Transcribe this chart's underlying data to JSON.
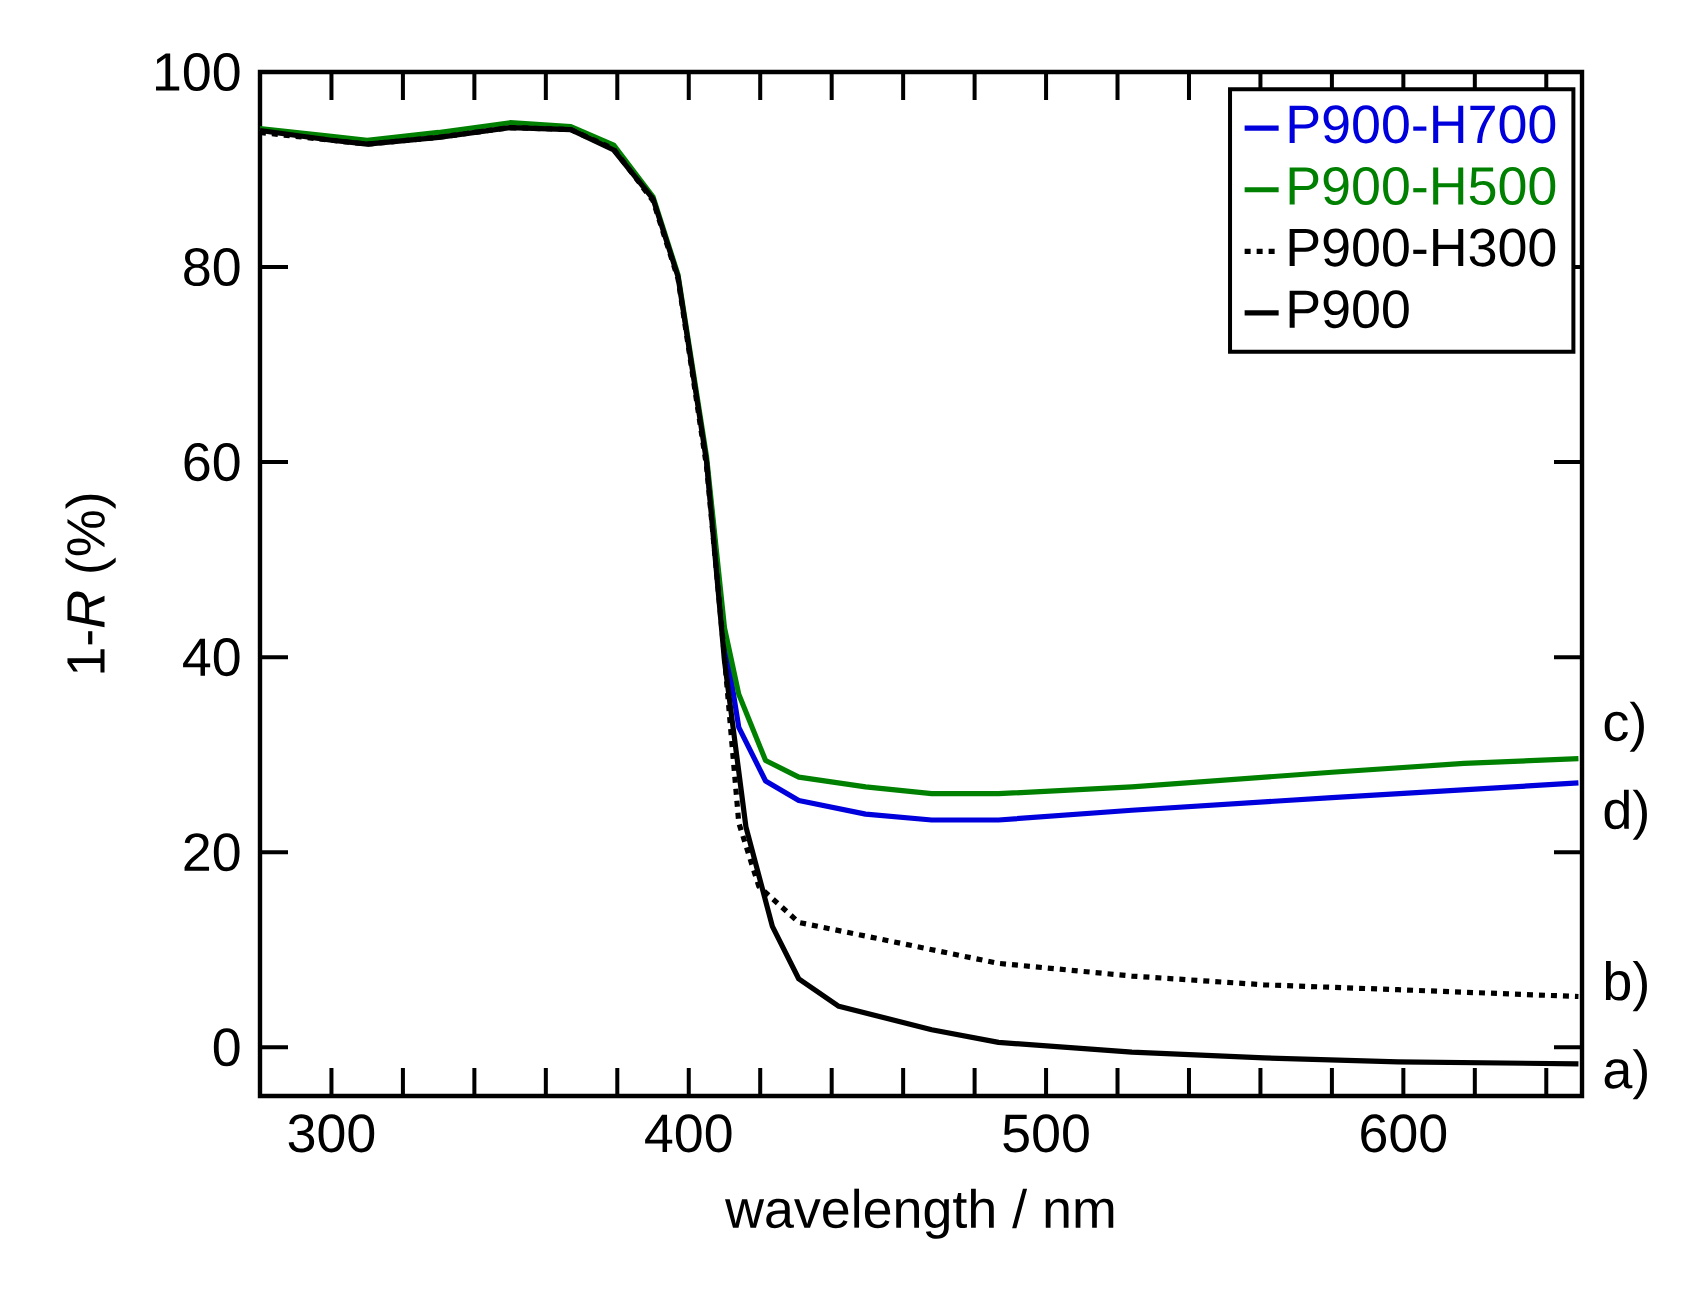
{
  "chart_data": {
    "type": "line",
    "xlabel": "wavelength / nm",
    "ylabel": "1-*R* (%)",
    "xlim": [
      280,
      650
    ],
    "ylim": [
      -5,
      100
    ],
    "xticks": [
      300,
      {
        "value": 320,
        "label": null
      },
      {
        "value": 340,
        "label": null
      },
      {
        "value": 360,
        "label": null
      },
      {
        "value": 380,
        "label": null
      },
      400,
      {
        "value": 420,
        "label": null
      },
      {
        "value": 440,
        "label": null
      },
      {
        "value": 460,
        "label": null
      },
      {
        "value": 480,
        "label": null
      },
      500,
      {
        "value": 520,
        "label": null
      },
      {
        "value": 540,
        "label": null
      },
      {
        "value": 560,
        "label": null
      },
      {
        "value": 580,
        "label": null
      },
      600,
      {
        "value": 620,
        "label": null
      },
      {
        "value": 640,
        "label": null
      }
    ],
    "yticks": [
      0,
      20,
      40,
      60,
      80,
      100
    ],
    "grid": false,
    "legend": "top right",
    "marker": "none",
    "series": [
      {
        "name": "P900-H700",
        "color": "#0000dd",
        "line_style": "solid",
        "x": [
          405,
          410,
          414,
          421.5,
          430.8,
          449.5,
          468,
          486.7,
          524,
          580,
          649
        ],
        "values": [
          60.0,
          42.0,
          32.8,
          27.3,
          25.3,
          23.9,
          23.3,
          23.3,
          24.3,
          25.6,
          27.1
        ]
      },
      {
        "name": "P900-H500",
        "color": "#008000",
        "line_style": "solid",
        "x": [
          280,
          300,
          310,
          330,
          350,
          367,
          379,
          390,
          397,
          405,
          410,
          414,
          421.5,
          430.8,
          449.5,
          468,
          486.7,
          524,
          580,
          617,
          649
        ],
        "values": [
          94.2,
          93.4,
          93.0,
          93.8,
          94.8,
          94.4,
          92.5,
          87.2,
          79.2,
          60.5,
          43.0,
          36.2,
          29.4,
          27.7,
          26.7,
          26.0,
          26.0,
          26.7,
          28.2,
          29.1,
          29.6
        ]
      },
      {
        "name": "P900-H300",
        "color": "#000000",
        "line_style": "dotted",
        "x": [
          280,
          300,
          310,
          330,
          350,
          367,
          379,
          390,
          397,
          405,
          410,
          414,
          419.6,
          430.8,
          449.5,
          486.7,
          524,
          561,
          598.5,
          649
        ],
        "values": [
          93.8,
          93.0,
          92.6,
          93.3,
          94.3,
          94.1,
          92.1,
          86.8,
          78.8,
          59.5,
          40.0,
          23.0,
          16.5,
          12.8,
          11.4,
          8.6,
          7.3,
          6.4,
          5.9,
          5.2
        ]
      },
      {
        "name": "P900",
        "color": "#000000",
        "line_style": "solid",
        "x": [
          280,
          300,
          310,
          330,
          350,
          367,
          379,
          390,
          397,
          405,
          410,
          416,
          423.4,
          430.8,
          442,
          468,
          486.7,
          524,
          561,
          598.5,
          649
        ],
        "values": [
          94.0,
          93.0,
          92.6,
          93.3,
          94.3,
          94.1,
          92.0,
          87.0,
          79.0,
          60.0,
          39.6,
          22.6,
          12.4,
          7.0,
          4.2,
          1.8,
          0.5,
          -0.5,
          -1.1,
          -1.5,
          -1.7
        ]
      }
    ],
    "annotations": [
      "c)",
      "d)",
      "b)",
      "a)"
    ]
  }
}
